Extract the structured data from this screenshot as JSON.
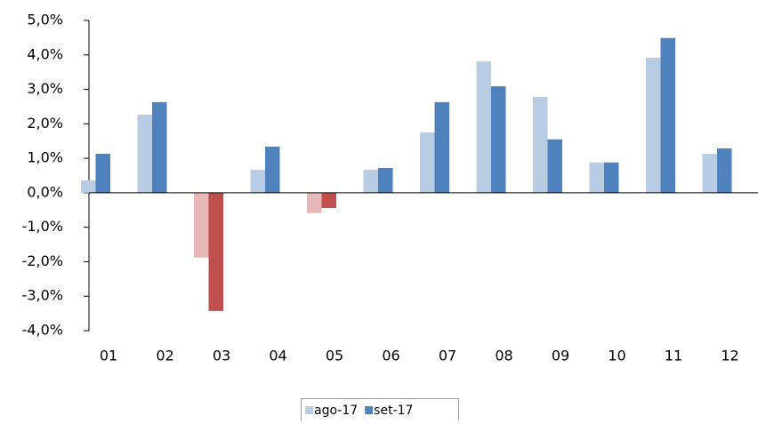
{
  "chart_data": {
    "type": "bar",
    "categories": [
      "01",
      "02",
      "03",
      "04",
      "05",
      "06",
      "07",
      "08",
      "09",
      "10",
      "11",
      "12"
    ],
    "series": [
      {
        "name": "ago-17",
        "color": "#b8cce4",
        "negative_color": "#e6b9b8",
        "values": [
          0.36,
          2.27,
          -1.88,
          0.67,
          -0.59,
          0.67,
          1.75,
          3.81,
          2.78,
          0.88,
          3.92,
          1.13
        ]
      },
      {
        "name": "set-17",
        "color": "#4f81bd",
        "negative_color": "#c0504d",
        "values": [
          1.13,
          2.63,
          -3.43,
          1.34,
          -0.44,
          0.72,
          2.63,
          3.09,
          1.55,
          0.88,
          4.49,
          1.29
        ]
      }
    ],
    "ylim": [
      -4,
      5
    ],
    "yticks": [
      {
        "value": -4,
        "label": "-4,0%"
      },
      {
        "value": -3,
        "label": "-3,0%"
      },
      {
        "value": -2,
        "label": "-2,0%"
      },
      {
        "value": -1,
        "label": "-1,0%"
      },
      {
        "value": 0,
        "label": "0,0%"
      },
      {
        "value": 1,
        "label": "1,0%"
      },
      {
        "value": 2,
        "label": "2,0%"
      },
      {
        "value": 3,
        "label": "3,0%"
      },
      {
        "value": 4,
        "label": "4,0%"
      },
      {
        "value": 5,
        "label": "5,0%"
      }
    ],
    "legend": "bottom"
  }
}
